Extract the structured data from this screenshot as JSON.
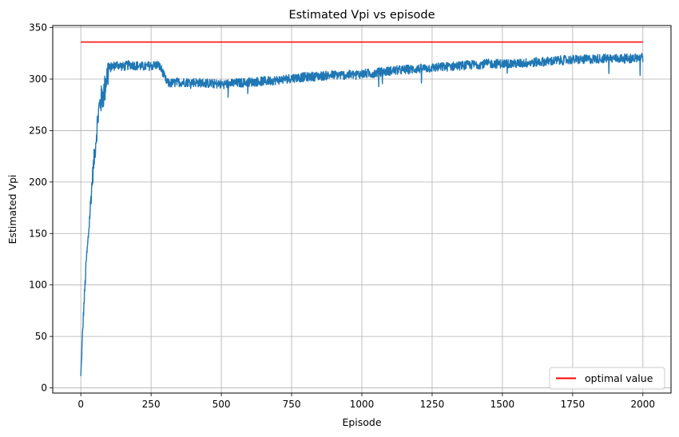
{
  "chart_data": {
    "type": "line",
    "title": "Estimated Vpi vs episode",
    "xlabel": "Episode",
    "ylabel": "Estimated Vpi",
    "xlim": [
      -100,
      2100
    ],
    "ylim": [
      -5,
      352
    ],
    "xticks": [
      0,
      250,
      500,
      750,
      1000,
      1250,
      1500,
      1750,
      2000
    ],
    "yticks": [
      0,
      50,
      100,
      150,
      200,
      250,
      300,
      350
    ],
    "grid": true,
    "legend_position": "bottom-right",
    "series": [
      {
        "name": "",
        "color": "#1f77b4",
        "style": "noisy",
        "x": [
          0,
          5,
          10,
          15,
          20,
          25,
          30,
          35,
          40,
          45,
          50,
          55,
          60,
          65,
          70,
          75,
          80,
          85,
          90,
          95,
          100,
          110,
          120,
          130,
          140,
          150,
          175,
          200,
          225,
          250,
          275,
          290,
          300,
          310,
          325,
          350,
          375,
          400,
          450,
          500,
          550,
          600,
          650,
          700,
          750,
          800,
          850,
          900,
          950,
          1000,
          1050,
          1100,
          1150,
          1200,
          1250,
          1300,
          1350,
          1400,
          1450,
          1500,
          1550,
          1600,
          1650,
          1700,
          1750,
          1800,
          1850,
          1900,
          1950,
          2000
        ],
        "values": [
          10,
          45,
          75,
          100,
          125,
          140,
          160,
          180,
          200,
          215,
          230,
          245,
          260,
          272,
          278,
          282,
          285,
          290,
          300,
          305,
          310,
          312,
          313,
          314,
          313,
          312,
          314,
          313,
          312,
          313,
          314,
          308,
          300,
          296,
          296,
          297,
          297,
          297,
          296,
          295,
          296,
          297,
          298,
          299,
          301,
          302,
          303,
          304,
          304,
          305,
          306,
          308,
          309,
          310,
          311,
          312,
          313,
          314,
          315,
          315,
          315,
          316,
          317,
          318,
          319,
          319,
          320,
          320,
          320,
          321
        ]
      },
      {
        "name": "optimal value",
        "color": "#ff0000",
        "style": "flat",
        "x": [
          0,
          2000
        ],
        "values": [
          336,
          336
        ]
      }
    ]
  }
}
